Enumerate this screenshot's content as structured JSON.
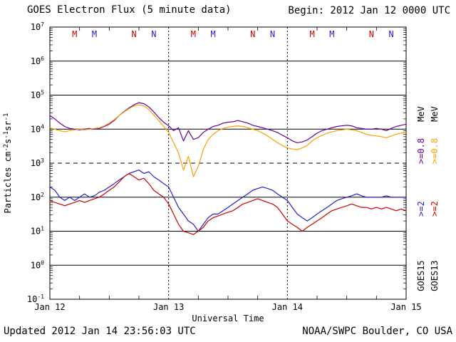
{
  "header": {
    "title": "GOES Electron Flux (5 minute data)",
    "begin_label": "Begin: 2012 Jan 12 0000 UTC"
  },
  "footer": {
    "updated": "Updated 2012 Jan 14 23:56:03 UTC",
    "source": "NOAA/SWPC Boulder, CO USA"
  },
  "chart_data": {
    "type": "line",
    "title": "GOES Electron Flux (5 minute data)",
    "xlabel": "Universal Time",
    "ylabel": "Particles cm-2 s-1 sr-1",
    "ylabel_parts": [
      {
        "t": "Particles cm"
      },
      {
        "t": "-2",
        "sup": true
      },
      {
        "t": "s"
      },
      {
        "t": "-1",
        "sup": true
      },
      {
        "t": "sr"
      },
      {
        "t": "-1",
        "sup": true
      }
    ],
    "y_scale": "log",
    "ylim": [
      0.1,
      10000000
    ],
    "y_tick_exponents": [
      7,
      6,
      5,
      4,
      3,
      2,
      1,
      0,
      -1
    ],
    "x_ticks": [
      "Jan 12",
      "Jan 13",
      "Jan 14",
      "Jan 15"
    ],
    "x_range_hours": [
      0,
      72
    ],
    "x_step_hours": 1,
    "grid": true,
    "threshold_line": {
      "value": 1000,
      "style": "dashed"
    },
    "day_boundaries_hours": [
      24,
      48
    ],
    "satellite_markers": [
      {
        "hour": 5,
        "label": "M",
        "color": "#cc0000"
      },
      {
        "hour": 9,
        "label": "M",
        "color": "#2222cc"
      },
      {
        "hour": 17,
        "label": "N",
        "color": "#cc0000"
      },
      {
        "hour": 21,
        "label": "N",
        "color": "#2222cc"
      },
      {
        "hour": 29,
        "label": "M",
        "color": "#cc0000"
      },
      {
        "hour": 33,
        "label": "M",
        "color": "#2222cc"
      },
      {
        "hour": 41,
        "label": "N",
        "color": "#cc0000"
      },
      {
        "hour": 45,
        "label": "N",
        "color": "#2222cc"
      },
      {
        "hour": 53,
        "label": "M",
        "color": "#cc0000"
      },
      {
        "hour": 57,
        "label": "M",
        "color": "#2222cc"
      },
      {
        "hour": 65,
        "label": "N",
        "color": "#cc0000"
      },
      {
        "hour": 69,
        "label": "N",
        "color": "#2222cc"
      }
    ],
    "legend": {
      "position": "right-rotated",
      "labels": {
        "e08": ">=0.8",
        "e2": ">=2",
        "mev": "MeV"
      },
      "columns": [
        {
          "satellite": "GOES15",
          "e08_color": "#660099",
          "e2_color": "#2222cc"
        },
        {
          "satellite": "GOES13",
          "e08_color": "#ffa000",
          "e2_color": "#cc0000"
        }
      ]
    },
    "series": [
      {
        "name": "GOES15 >=0.8 MeV",
        "color": "#660099",
        "values": [
          25000,
          20000,
          15000,
          12000,
          10500,
          10000,
          9500,
          10000,
          10500,
          10000,
          10500,
          12000,
          14000,
          18000,
          25000,
          33000,
          42000,
          52000,
          60000,
          56000,
          45000,
          32000,
          22000,
          16000,
          12500,
          9000,
          11000,
          4500,
          9000,
          5000,
          5600,
          8000,
          10000,
          12000,
          13000,
          15000,
          16000,
          16500,
          18000,
          16500,
          15000,
          13000,
          12000,
          11000,
          10000,
          9000,
          8000,
          6600,
          5600,
          4500,
          4000,
          4200,
          4800,
          6000,
          7600,
          9000,
          10000,
          11000,
          12000,
          12500,
          13000,
          12500,
          11000,
          10500,
          10000,
          10000,
          10500,
          10000,
          9000,
          10500,
          12000,
          13000,
          14000
        ]
      },
      {
        "name": "GOES13 >=0.8 MeV",
        "color": "#ffa000",
        "values": [
          11000,
          10000,
          9000,
          8300,
          9000,
          9500,
          10000,
          9500,
          10000,
          10500,
          11000,
          12500,
          15000,
          19000,
          25000,
          32000,
          40000,
          48000,
          52000,
          48000,
          38000,
          26000,
          18000,
          12000,
          8000,
          4000,
          2000,
          630,
          1600,
          400,
          800,
          2500,
          5000,
          7000,
          9000,
          10500,
          11500,
          12000,
          12500,
          12000,
          11000,
          10000,
          9000,
          7600,
          6300,
          5000,
          4000,
          3300,
          2800,
          2600,
          2500,
          2800,
          3300,
          4500,
          5600,
          6600,
          7600,
          8300,
          9000,
          9500,
          10000,
          9500,
          9000,
          8000,
          7000,
          6600,
          6300,
          6000,
          5600,
          6300,
          7000,
          7600,
          8000
        ]
      },
      {
        "name": "GOES15 >=2 MeV",
        "color": "#2222cc",
        "values": [
          200,
          160,
          100,
          80,
          100,
          80,
          100,
          125,
          100,
          110,
          140,
          160,
          200,
          250,
          320,
          400,
          500,
          560,
          630,
          500,
          560,
          400,
          320,
          250,
          200,
          100,
          50,
          32,
          20,
          16,
          10,
          16,
          25,
          32,
          32,
          40,
          50,
          63,
          80,
          100,
          125,
          160,
          180,
          200,
          180,
          160,
          125,
          100,
          80,
          50,
          32,
          25,
          20,
          25,
          32,
          40,
          50,
          63,
          80,
          90,
          100,
          110,
          125,
          110,
          100,
          100,
          100,
          100,
          110,
          100,
          100,
          100,
          100
        ]
      },
      {
        "name": "GOES13 >=2 MeV",
        "color": "#cc0000",
        "values": [
          80,
          70,
          63,
          56,
          63,
          70,
          80,
          70,
          80,
          90,
          100,
          125,
          160,
          200,
          280,
          400,
          500,
          400,
          320,
          360,
          250,
          160,
          125,
          100,
          63,
          32,
          16,
          10,
          9,
          8,
          10,
          13,
          20,
          25,
          28,
          32,
          36,
          40,
          50,
          63,
          70,
          80,
          90,
          80,
          70,
          63,
          50,
          32,
          20,
          16,
          13,
          10,
          13,
          16,
          20,
          25,
          32,
          40,
          45,
          50,
          56,
          63,
          56,
          50,
          50,
          45,
          50,
          45,
          50,
          45,
          40,
          45,
          40
        ]
      }
    ]
  }
}
